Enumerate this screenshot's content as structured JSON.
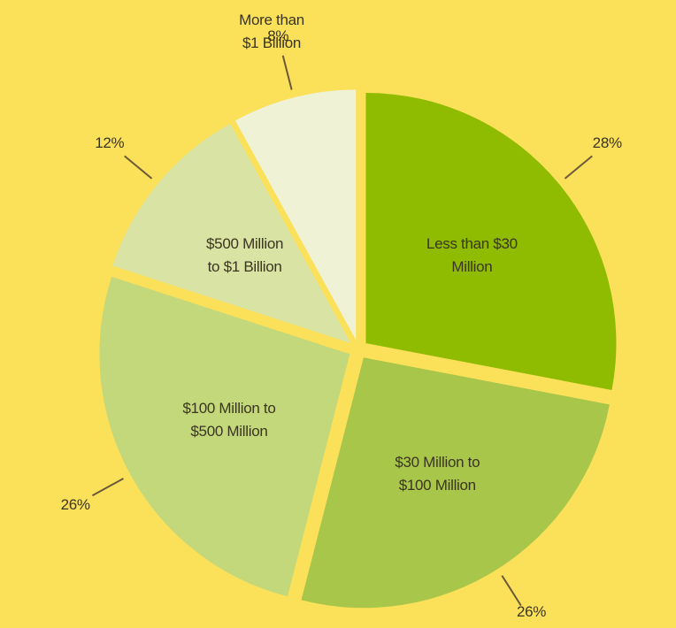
{
  "chart_data": {
    "type": "pie",
    "categories": [
      "Less than $30\nMillion",
      "$30 Million to\n$100 Million",
      "$100 Million to\n$500 Million",
      "$500 Million\nto $1 Billion",
      "More than\n$1 Billion"
    ],
    "values": [
      28,
      26,
      26,
      12,
      8
    ],
    "value_labels": [
      "28%",
      "26%",
      "26%",
      "12%",
      "8%"
    ],
    "colors": [
      "#8fbb00",
      "#a8c64a",
      "#c3d87a",
      "#d8e3a4",
      "#eff2d4"
    ]
  }
}
